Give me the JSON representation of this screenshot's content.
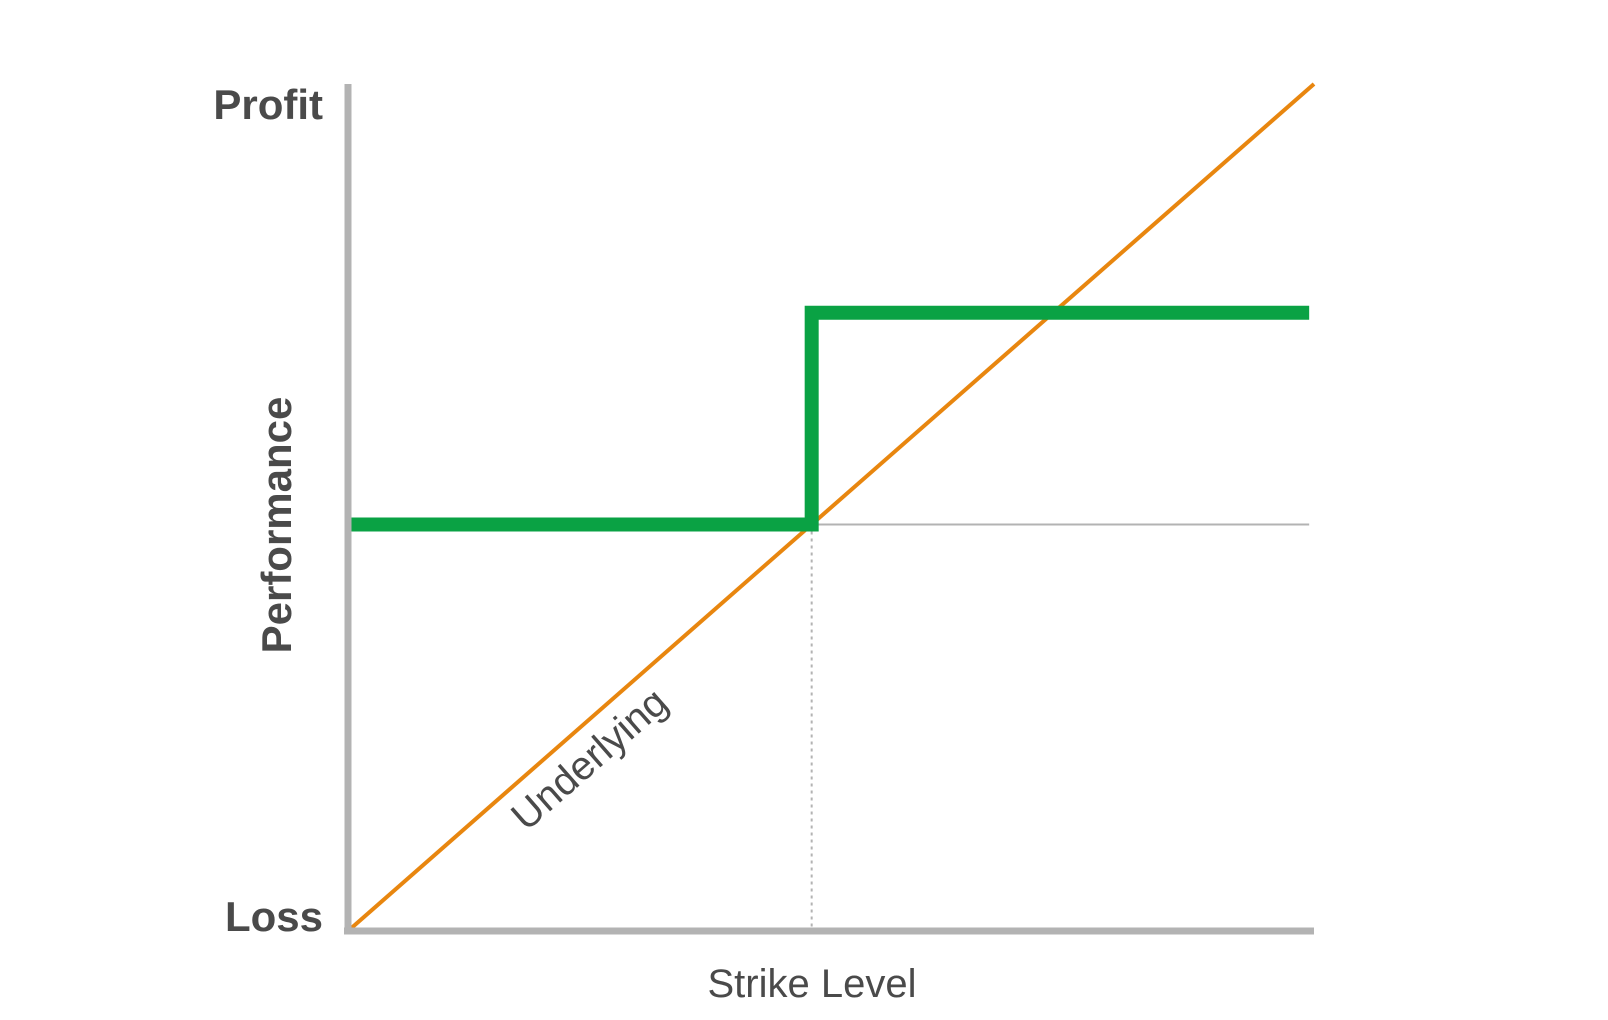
{
  "chart_data": {
    "type": "line",
    "title": "",
    "xlabel": "Strike Level",
    "ylabel": "Performance",
    "y_top_label": "Profit",
    "y_bottom_label": "Loss",
    "xlim": [
      0,
      1
    ],
    "ylim": [
      0,
      1
    ],
    "grid": false,
    "legend": "none",
    "strike": 0.48,
    "strike_level_y": 0.48,
    "series": [
      {
        "name": "Underlying",
        "color": "#e8860f",
        "x": [
          0,
          1
        ],
        "y": [
          0,
          1
        ]
      },
      {
        "name": "",
        "color": "#0aa244",
        "x": [
          0,
          0.48,
          0.48,
          0.995
        ],
        "y": [
          0.48,
          0.48,
          0.73,
          0.73
        ]
      }
    ],
    "colors": {
      "axis": "#b3b3b3",
      "reference": "#b3b3b3",
      "text": "#4a4a4a"
    }
  }
}
